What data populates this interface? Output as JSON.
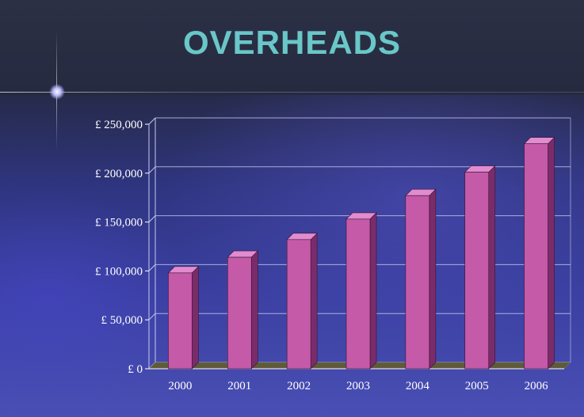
{
  "slide": {
    "title": "OVERHEADS"
  },
  "chart_data": {
    "type": "bar",
    "title": "OVERHEADS",
    "categories": [
      "2000",
      "2001",
      "2002",
      "2003",
      "2004",
      "2005",
      "2006"
    ],
    "values": [
      98000,
      114000,
      132000,
      153000,
      177000,
      201000,
      230000
    ],
    "ylim": [
      0,
      250000
    ],
    "yticks": [
      0,
      50000,
      100000,
      150000,
      200000,
      250000
    ],
    "ytick_labels": [
      "£ 0",
      "£ 50,000",
      "£ 100,000",
      "£ 150,000",
      "£ 200,000",
      "£ 250,000"
    ],
    "xlabel": "",
    "ylabel": "",
    "grid": true,
    "style": "3d-column",
    "colors": {
      "bar_front": "#c45aa8",
      "bar_side": "#7a2c6a",
      "bar_top": "#e08ccf",
      "gridline": "#c7c9ef",
      "floor": "#5e5a3a"
    }
  }
}
